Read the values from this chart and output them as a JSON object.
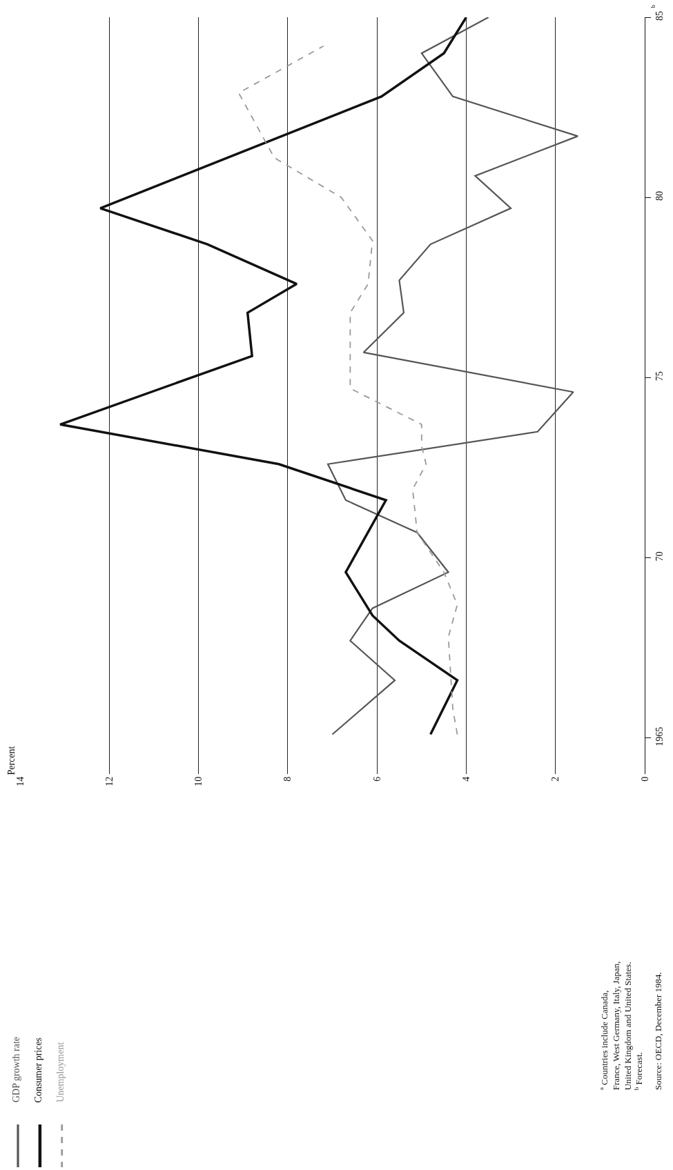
{
  "chart_data": {
    "type": "line",
    "orientation": "horizontal",
    "xlim": [
      14,
      0
    ],
    "xticks": [
      0,
      2,
      4,
      6,
      8,
      10,
      12,
      14
    ],
    "ylim": [
      1964,
      1985
    ],
    "yticks": [
      {
        "value": 1965,
        "label": "1965"
      },
      {
        "value": 1970,
        "label": "70"
      },
      {
        "value": 1975,
        "label": "75"
      },
      {
        "value": 1980,
        "label": "80"
      },
      {
        "value": 1985,
        "label": "85"
      }
    ],
    "grid": "x",
    "legend": "bottom left",
    "marker": "none",
    "series": [
      {
        "name": "GDP growth rate",
        "color": "#555555",
        "line_style": "solid",
        "x": [
          1965.1,
          1966.6,
          1967.7,
          1968.6,
          1969.6,
          1970.7,
          1971.6,
          1972.6,
          1973.5,
          1974.6,
          1975.7,
          1976.8,
          1977.7,
          1978.7,
          1979.7,
          1980.6,
          1981.7,
          1982.8,
          1984.0,
          1985.0
        ],
        "values": [
          7.0,
          5.6,
          6.6,
          6.1,
          4.4,
          5.1,
          6.7,
          7.1,
          2.4,
          1.6,
          6.3,
          5.4,
          5.5,
          4.8,
          3.0,
          3.8,
          1.5,
          4.3,
          5.0,
          3.5
        ]
      },
      {
        "name": "Consumer prices",
        "color": "#111111",
        "line_style": "solid",
        "x": [
          1965.1,
          1966.6,
          1967.7,
          1968.4,
          1969.6,
          1971.6,
          1972.6,
          1973.7,
          1975.6,
          1976.8,
          1977.6,
          1978.7,
          1979.7,
          1982.8,
          1984.0,
          1985.0
        ],
        "values": [
          4.8,
          4.2,
          5.5,
          6.1,
          6.7,
          5.8,
          8.2,
          13.1,
          8.8,
          8.9,
          7.8,
          9.8,
          12.2,
          5.9,
          4.5,
          4.0
        ]
      },
      {
        "name": "Unemployment",
        "color": "#999999",
        "line_style": "dashed",
        "x": [
          1965.1,
          1965.8,
          1967.8,
          1968.7,
          1969.6,
          1970.7,
          1971.9,
          1972.6,
          1973.1,
          1973.7,
          1974.7,
          1976.8,
          1977.6,
          1978.8,
          1980.0,
          1981.1,
          1982.9,
          1984.2
        ],
        "values": [
          4.2,
          4.3,
          4.4,
          4.2,
          4.5,
          5.1,
          5.2,
          4.9,
          5.0,
          5.0,
          6.6,
          6.6,
          6.2,
          6.1,
          6.8,
          8.3,
          9.1,
          7.2
        ]
      }
    ],
    "annotations": [
      "Percent",
      "$^{a}$ Countries include Canada,\nFrance, West Germany, Italy, Japan,\nUnited Kingdom and United States.\n$^{b}$ Forecast.",
      "Source: OECD, December 1984.",
      "$^{b}$"
    ]
  }
}
